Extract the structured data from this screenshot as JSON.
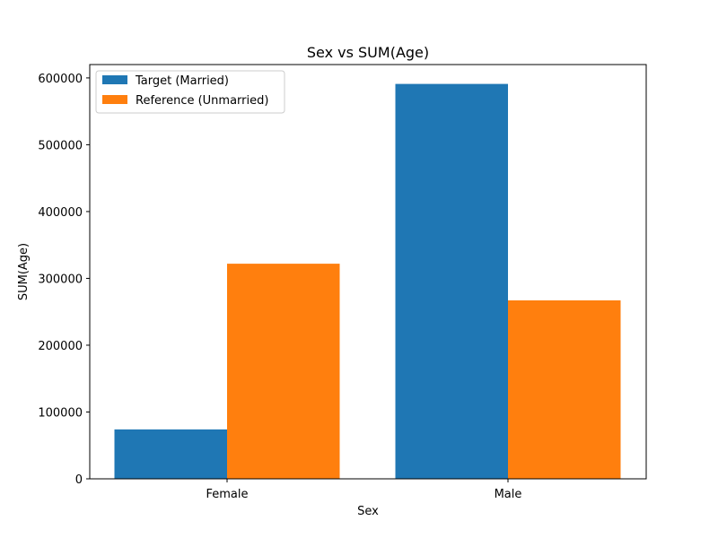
{
  "chart_data": {
    "type": "bar",
    "title": "Sex vs SUM(Age)",
    "xlabel": "Sex",
    "ylabel": "SUM(Age)",
    "categories": [
      "Female",
      "Male"
    ],
    "series": [
      {
        "name": "Target (Married)",
        "color": "#1f77b4",
        "values": [
          74000,
          591000
        ]
      },
      {
        "name": "Reference (Unmarried)",
        "color": "#ff7f0e",
        "values": [
          322000,
          267000
        ]
      }
    ],
    "ylim": [
      0,
      620000
    ],
    "yticks": [
      0,
      100000,
      200000,
      300000,
      400000,
      500000,
      600000
    ],
    "grid": false,
    "legend_position": "top-left"
  }
}
